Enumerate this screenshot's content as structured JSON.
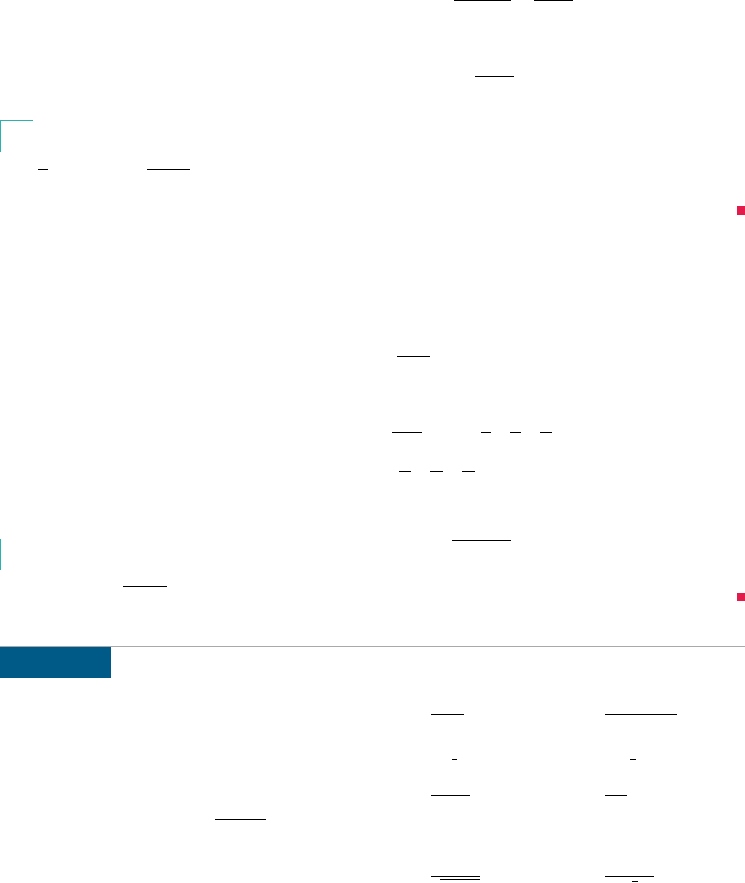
{
  "page": {
    "accent_color": "#2ab1b0",
    "end_marker_color": "#e31b4b",
    "section_tab_color": "#005a87",
    "section_rule_color": "#a7a9ac"
  },
  "icons": {
    "example_start": "bracket-corner-icon",
    "example_end": "square-end-icon"
  }
}
